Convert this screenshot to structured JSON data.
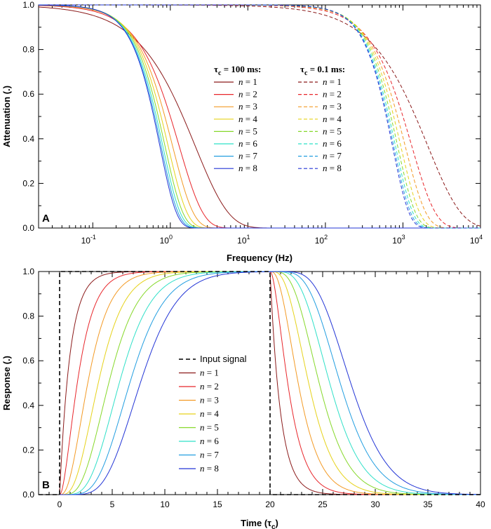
{
  "chart_data": [
    {
      "panel_label": "A",
      "type": "line",
      "xscale": "log",
      "xlabel": "Frequency  (Hz)",
      "ylabel": "Attenuation  (.)",
      "xlim": [
        0.02,
        10000
      ],
      "ylim": [
        0,
        1
      ],
      "x_major_ticks": [
        0.1,
        1,
        10,
        100,
        1000,
        10000
      ],
      "x_tick_labels": [
        {
          "base": "10",
          "exp": "-1"
        },
        {
          "base": "10",
          "exp": "0"
        },
        {
          "base": "10",
          "exp": "1"
        },
        {
          "base": "10",
          "exp": "2"
        },
        {
          "base": "10",
          "exp": "3"
        },
        {
          "base": "10",
          "exp": "4"
        }
      ],
      "y_ticks": [
        0,
        0.2,
        0.4,
        0.6,
        0.8,
        1
      ],
      "y_tick_labels": [
        "0.0",
        "0.2",
        "0.4",
        "0.6",
        "0.8",
        "1.0"
      ],
      "model": "gaussian-shaped lowpass: A(f) = exp(-(f/f_half)^2 * ln 2), steeper with larger n",
      "groups": [
        {
          "title_prefix": "τ",
          "title_sub": "c",
          "title_suffix": " = 100 ms:",
          "style": "solid",
          "series": [
            {
              "name": "n = 1",
              "f_half": 1.45,
              "shape": 1.0
            },
            {
              "name": "n = 2",
              "f_half": 1.0,
              "shape": 1.4
            },
            {
              "name": "n = 3",
              "f_half": 0.85,
              "shape": 1.6
            },
            {
              "name": "n = 4",
              "f_half": 0.76,
              "shape": 1.75
            },
            {
              "name": "n = 5",
              "f_half": 0.7,
              "shape": 1.85
            },
            {
              "name": "n = 6",
              "f_half": 0.66,
              "shape": 1.9
            },
            {
              "name": "n = 7",
              "f_half": 0.63,
              "shape": 1.95
            },
            {
              "name": "n = 8",
              "f_half": 0.61,
              "shape": 2.0
            }
          ]
        },
        {
          "title_prefix": "τ",
          "title_sub": "c",
          "title_suffix": " = 0.1 ms:",
          "style": "dashed",
          "series": [
            {
              "name": "n = 1",
              "f_half": 1450,
              "shape": 1.0
            },
            {
              "name": "n = 2",
              "f_half": 1000,
              "shape": 1.4
            },
            {
              "name": "n = 3",
              "f_half": 850,
              "shape": 1.6
            },
            {
              "name": "n = 4",
              "f_half": 760,
              "shape": 1.75
            },
            {
              "name": "n = 5",
              "f_half": 700,
              "shape": 1.85
            },
            {
              "name": "n = 6",
              "f_half": 660,
              "shape": 1.9
            },
            {
              "name": "n = 7",
              "f_half": 630,
              "shape": 1.95
            },
            {
              "name": "n = 8",
              "f_half": 610,
              "shape": 2.0
            }
          ]
        }
      ]
    },
    {
      "panel_label": "B",
      "type": "line",
      "xlabel_prefix": "Time  (τ",
      "xlabel_sub": "c",
      "xlabel_suffix": ")",
      "ylabel": "Response  (.)",
      "xlim": [
        -2,
        40
      ],
      "ylim": [
        0,
        1
      ],
      "x_ticks": [
        0,
        5,
        10,
        15,
        20,
        25,
        30,
        35,
        40
      ],
      "x_tick_labels": [
        "0",
        "5",
        "10",
        "15",
        "20",
        "25",
        "30",
        "35",
        "40"
      ],
      "y_ticks": [
        0,
        0.2,
        0.4,
        0.6,
        0.8,
        1
      ],
      "y_tick_labels": [
        "0.0",
        "0.2",
        "0.4",
        "0.6",
        "0.8",
        "1.0"
      ],
      "input_signal": {
        "name": "Input signal",
        "on": 0,
        "off": 20,
        "style": "dashed"
      },
      "model": "cascade of n first-order stages (Erlang step response), time constant τc",
      "series": [
        {
          "name": "n = 1",
          "stages": 1
        },
        {
          "name": "n = 2",
          "stages": 2
        },
        {
          "name": "n = 3",
          "stages": 3
        },
        {
          "name": "n = 4",
          "stages": 4
        },
        {
          "name": "n = 5",
          "stages": 5
        },
        {
          "name": "n = 6",
          "stages": 6
        },
        {
          "name": "n = 7",
          "stages": 7
        },
        {
          "name": "n = 8",
          "stages": 8
        }
      ]
    }
  ],
  "colors": {
    "n1": "#8b1a1a",
    "n2": "#e8262b",
    "n3": "#f39a24",
    "n4": "#e6d21a",
    "n5": "#86d82a",
    "n6": "#2fe0c8",
    "n7": "#229ee0",
    "n8": "#2335d6",
    "input": "#000000"
  }
}
